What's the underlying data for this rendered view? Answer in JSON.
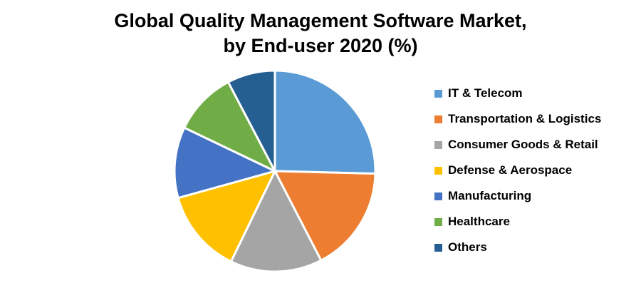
{
  "title": {
    "line1": "Global Quality Management Software Market,",
    "line2": "by End-user 2020 (%)"
  },
  "legend": {
    "position": "right",
    "items": [
      {
        "label": "IT & Telecom",
        "color": "#5B9BD5"
      },
      {
        "label": "Transportation & Logistics",
        "color": "#ED7D31"
      },
      {
        "label": "Consumer Goods & Retail",
        "color": "#A5A5A5"
      },
      {
        "label": "Defense & Aerospace",
        "color": "#FFC000"
      },
      {
        "label": "Manufacturing",
        "color": "#4472C4"
      },
      {
        "label": "Healthcare",
        "color": "#70AD47"
      },
      {
        "label": "Others",
        "color": "#255E91"
      }
    ]
  },
  "chart_data": {
    "type": "pie",
    "title": "Global Quality Management Software Market, by End-user 2020 (%)",
    "categories": [
      "IT & Telecom",
      "Transportation & Logistics",
      "Consumer Goods & Retail",
      "Defense & Aerospace",
      "Manufacturing",
      "Healthcare",
      "Others"
    ],
    "values": [
      25.4,
      17.0,
      14.8,
      13.5,
      11.4,
      10.2,
      7.7
    ],
    "colors": [
      "#5B9BD5",
      "#ED7D31",
      "#A5A5A5",
      "#FFC000",
      "#4472C4",
      "#70AD47",
      "#255E91"
    ],
    "start_angle_deg": 0,
    "direction": "clockwise",
    "slice_border_color": "#FFFFFF",
    "slice_border_width_px": 3,
    "data_labels": false,
    "legend_position": "right",
    "background_color": "#FFFFFF"
  }
}
